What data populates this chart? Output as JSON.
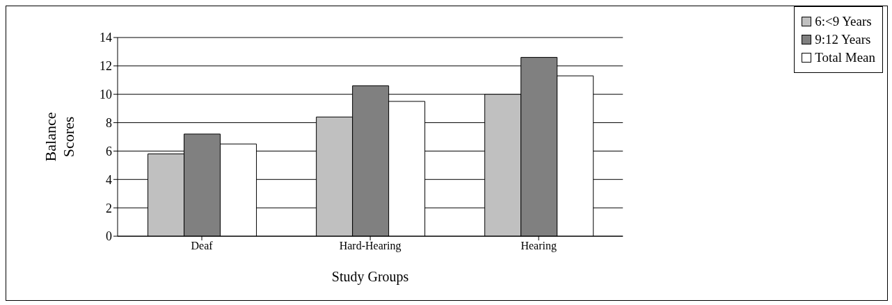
{
  "chart_data": {
    "type": "bar",
    "categories": [
      "Deaf",
      "Hard-Hearing",
      "Hearing"
    ],
    "series": [
      {
        "name": "6:<9 Years",
        "color": "#c0c0c0",
        "values": [
          5.8,
          8.4,
          10.0
        ]
      },
      {
        "name": "9:12 Years",
        "color": "#808080",
        "values": [
          7.2,
          10.6,
          12.6
        ]
      },
      {
        "name": "Total Mean",
        "color": "#ffffff",
        "values": [
          6.5,
          9.5,
          11.3
        ]
      }
    ],
    "xlabel": "Study Groups",
    "ylabel": "Balance Scores",
    "ylim": [
      0,
      14
    ],
    "yticks": [
      0,
      2,
      4,
      6,
      8,
      10,
      12,
      14
    ],
    "grid": "y",
    "legend": "top right"
  }
}
